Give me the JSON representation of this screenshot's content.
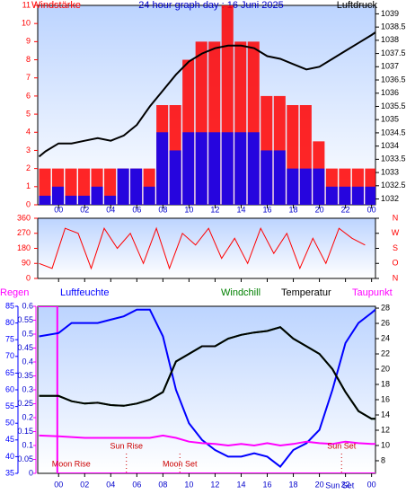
{
  "chart_data": [
    {
      "type": "bar-line",
      "title": "24 hour graph day : 16 Juni 2025",
      "y_label": "Windstärke",
      "y2_label": "Luftdruck",
      "xlim": [
        -1.6,
        24.3
      ],
      "xticks": [
        {
          "value": 0,
          "label": "00"
        },
        {
          "value": 2,
          "label": "02"
        },
        {
          "value": 4,
          "label": "04"
        },
        {
          "value": 6,
          "label": "06"
        },
        {
          "value": 8,
          "label": "08"
        },
        10,
        12,
        14,
        16,
        18,
        20,
        22,
        {
          "value": 24,
          "label": "00"
        }
      ],
      "ylim": [
        0,
        11
      ],
      "yticks": [
        0,
        1,
        2,
        3,
        4,
        5,
        6,
        7,
        8,
        9,
        10,
        11
      ],
      "y2lim": [
        1031.78,
        1039.32
      ],
      "y2ticks": [
        1032,
        1032.5,
        1033,
        1033.5,
        1034,
        1034.5,
        1035,
        1035.5,
        1036,
        1036.5,
        1037,
        1037.5,
        1038,
        1038.5,
        1039
      ],
      "series": [
        {
          "kind": "bar",
          "color": "#ff0000",
          "x": [
            -1.5,
            -0.5,
            0.5,
            1.5,
            2.5,
            3.5,
            4.5,
            5.5,
            6.5,
            7.5,
            8.5,
            9.5,
            10.5,
            11.5,
            12.5,
            13.5,
            14.5,
            15.5,
            16.5,
            17.5,
            18.5,
            19.5,
            20.5,
            21.5,
            22.5,
            23.5
          ],
          "values": [
            2,
            2,
            2,
            2,
            2,
            2,
            2,
            2,
            2,
            5.5,
            5.5,
            8,
            9,
            9,
            11,
            9,
            9,
            6,
            6,
            5.5,
            5.5,
            3.5,
            2,
            2,
            2,
            2
          ]
        },
        {
          "kind": "bar",
          "color": "#0000ff",
          "x": [
            -1.5,
            -0.5,
            0.5,
            1.5,
            2.5,
            3.5,
            4.5,
            5.5,
            6.5,
            7.5,
            8.5,
            9.5,
            10.5,
            11.5,
            12.5,
            13.5,
            14.5,
            15.5,
            16.5,
            17.5,
            18.5,
            19.5,
            20.5,
            21.5,
            22.5,
            23.5
          ],
          "values": [
            0.5,
            1,
            0.5,
            0.5,
            1,
            0.5,
            2,
            2,
            1,
            4,
            3,
            4,
            4,
            4,
            4,
            4,
            4,
            3,
            3,
            2,
            2,
            2,
            1,
            1,
            1,
            1
          ]
        },
        {
          "kind": "line",
          "axis": "y2",
          "color": "#000000",
          "x": [
            -1.5,
            -1,
            0,
            1,
            2,
            3,
            4,
            5,
            6,
            7,
            8,
            9,
            10,
            11,
            12,
            13,
            14,
            15,
            16,
            17,
            18,
            19,
            20,
            21,
            22,
            23,
            24,
            24.3
          ],
          "values": [
            1033.6,
            1033.8,
            1034.1,
            1034.1,
            1034.2,
            1034.3,
            1034.2,
            1034.4,
            1034.8,
            1035.5,
            1036.1,
            1036.7,
            1037.2,
            1037.5,
            1037.7,
            1037.8,
            1037.8,
            1037.7,
            1037.4,
            1037.3,
            1037.1,
            1036.9,
            1037.0,
            1037.3,
            1037.6,
            1037.9,
            1038.2,
            1038.3
          ]
        }
      ]
    },
    {
      "type": "line",
      "xlim": [
        -1.6,
        24.3
      ],
      "xticks": [
        {
          "value": 0,
          "label": "00"
        },
        {
          "value": 2,
          "label": "02"
        },
        {
          "value": 4,
          "label": "04"
        },
        {
          "value": 6,
          "label": "06"
        },
        {
          "value": 8,
          "label": "08"
        },
        10,
        12,
        14,
        16,
        18,
        20,
        22,
        {
          "value": 24,
          "label": "00"
        }
      ],
      "ylim": [
        0,
        360
      ],
      "yticks": [
        0,
        90,
        180,
        270,
        360
      ],
      "y2lim": [
        0,
        360
      ],
      "y2ticks": [
        {
          "value": 360,
          "label": "N"
        },
        {
          "value": 270,
          "label": "W"
        },
        {
          "value": 180,
          "label": "S"
        },
        {
          "value": 90,
          "label": "O"
        },
        {
          "value": 0,
          "label": "N"
        }
      ],
      "series": [
        {
          "color": "#ff0000",
          "x": [
            -1.5,
            -0.5,
            0.5,
            1.5,
            2.5,
            3.5,
            4.5,
            5.5,
            6.5,
            7.5,
            8.5,
            9.5,
            10.5,
            11.5,
            12.5,
            13.5,
            14.5,
            15.5,
            16.5,
            17.5,
            18.5,
            19.5,
            20.5,
            21.5,
            22.5,
            23.5
          ],
          "values": [
            90,
            60,
            300,
            270,
            60,
            300,
            180,
            270,
            90,
            300,
            60,
            270,
            200,
            300,
            120,
            240,
            90,
            300,
            150,
            270,
            60,
            240,
            90,
            300,
            240,
            200
          ]
        }
      ]
    },
    {
      "type": "line",
      "xlim": [
        -1.6,
        24.3
      ],
      "xticks": [
        {
          "value": 0,
          "label": "00"
        },
        {
          "value": 2,
          "label": "02"
        },
        {
          "value": 4,
          "label": "04"
        },
        {
          "value": 6,
          "label": "06"
        },
        {
          "value": 8,
          "label": "08"
        },
        10,
        12,
        14,
        16,
        18,
        20,
        22,
        {
          "value": 24,
          "label": "00"
        }
      ],
      "ylim": [
        35,
        85
      ],
      "yticks": [
        35,
        40,
        45,
        50,
        55,
        60,
        65,
        70,
        75,
        80,
        85
      ],
      "y2lim": [
        6.35,
        28.24
      ],
      "y2ticks": [
        8,
        10,
        12,
        14,
        16,
        18,
        20,
        22,
        24,
        26,
        28
      ],
      "y3lim": [
        0,
        0.6
      ],
      "y3ticks": [
        0,
        0.05,
        0.1,
        0.15,
        0.2,
        0.25,
        0.3,
        0.35,
        0.4,
        0.45,
        0.5,
        0.55,
        0.6
      ],
      "series": [
        {
          "name": "Regen",
          "axis": "y3",
          "color": "#ff00ff",
          "x": [
            -1.6,
            -0.1,
            -0.1,
            24.3
          ],
          "values": [
            0.6,
            0.6,
            0,
            0
          ]
        },
        {
          "name": "Luftfeuchte",
          "axis": "y",
          "color": "#0000ff",
          "x": [
            -1.5,
            0,
            1,
            2,
            3,
            4,
            5,
            6,
            7,
            8,
            9,
            10,
            11,
            12,
            13,
            14,
            15,
            16,
            17,
            18,
            19,
            20,
            21,
            22,
            23,
            24,
            24.3
          ],
          "values": [
            76,
            77,
            80,
            80,
            80,
            81,
            82,
            84,
            84,
            76,
            60,
            50,
            45,
            42,
            40,
            40,
            41,
            40,
            37,
            42,
            44,
            48,
            60,
            74,
            80,
            83,
            84
          ]
        },
        {
          "name": "Windchill",
          "axis": "y2",
          "color": "#008000",
          "x": [
            -1.5,
            0,
            1,
            2,
            3,
            4,
            5,
            6,
            7,
            8,
            9,
            10,
            11,
            12,
            13,
            14,
            15,
            16,
            17,
            18,
            19,
            20,
            21,
            22,
            23,
            24,
            24.3
          ],
          "values": [
            16.5,
            16.5,
            15.8,
            15.5,
            15.6,
            15.3,
            15.2,
            15.5,
            16,
            17,
            21,
            22,
            23,
            23,
            24,
            24.5,
            24.8,
            25,
            25.5,
            24,
            23,
            22,
            20,
            17,
            14.5,
            13.5,
            13.5
          ]
        },
        {
          "name": "Temperatur",
          "axis": "y2",
          "color": "#000000",
          "x": [
            -1.5,
            0,
            1,
            2,
            3,
            4,
            5,
            6,
            7,
            8,
            9,
            10,
            11,
            12,
            13,
            14,
            15,
            16,
            17,
            18,
            19,
            20,
            21,
            22,
            23,
            24,
            24.3
          ],
          "values": [
            16.5,
            16.5,
            15.8,
            15.5,
            15.6,
            15.3,
            15.2,
            15.5,
            16,
            17,
            21,
            22,
            23,
            23,
            24,
            24.5,
            24.8,
            25,
            25.5,
            24,
            23,
            22,
            20,
            17,
            14.5,
            13.5,
            13.5
          ]
        },
        {
          "name": "Taupunkt",
          "axis": "y2",
          "color": "#ff00ff",
          "x": [
            -1.5,
            0,
            1,
            2,
            3,
            4,
            5,
            6,
            7,
            8,
            9,
            10,
            11,
            12,
            13,
            14,
            15,
            16,
            17,
            18,
            19,
            20,
            21,
            22,
            23,
            24,
            24.3
          ],
          "values": [
            11.3,
            11.2,
            11.1,
            11,
            11,
            11,
            11,
            11,
            11,
            11.3,
            11,
            10.5,
            10.3,
            10.2,
            10,
            10.2,
            10,
            10.3,
            10,
            10.2,
            10.5,
            10.3,
            10.2,
            10.5,
            10.3,
            10.2,
            10.2
          ]
        }
      ],
      "annotations": [
        {
          "text": "Moon Rise",
          "x": -0.2
        },
        {
          "text": "Sun Rise",
          "x": 5.2
        },
        {
          "text": "Moon Set",
          "x": 9.3
        },
        {
          "text": "Sun Set",
          "x": 21.7
        },
        {
          "text": "Sun Set",
          "x": 21.7
        }
      ]
    }
  ]
}
